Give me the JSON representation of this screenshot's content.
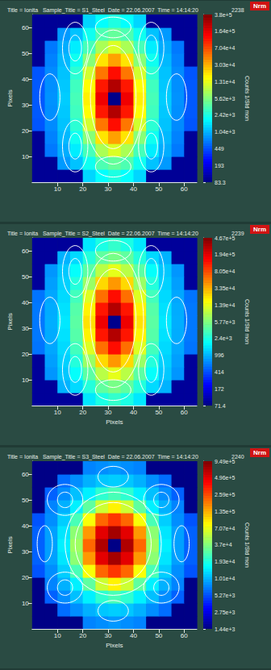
{
  "chart_data": [
    {
      "type": "heatmap",
      "title": "Title = Ionita   Sample_Title = S1_Steel  Date = 22.06.2007  Time = 14:14:20",
      "run": "2238",
      "badge": "Nrm",
      "ylabel": "Pixels",
      "xlim": [
        0,
        65
      ],
      "ylim": [
        0,
        65
      ],
      "xticks": [
        10,
        20,
        30,
        40,
        50,
        60
      ],
      "yticks": [
        10,
        20,
        30,
        40,
        50,
        60
      ],
      "log": true,
      "x": [
        2.5,
        7.5,
        12.5,
        17.5,
        22.5,
        27.5,
        32.5,
        37.5,
        42.5,
        47.5,
        52.5,
        57.5,
        62.5
      ],
      "y": [
        2.5,
        7.5,
        12.5,
        17.5,
        22.5,
        27.5,
        32.5,
        37.5,
        42.5,
        47.5,
        52.5,
        57.5,
        62.5
      ],
      "cells": [
        [
          100,
          100,
          100,
          100,
          1400,
          2000,
          2500,
          2000,
          1400,
          100,
          100,
          100,
          100
        ],
        [
          100,
          100,
          850,
          1200,
          2200,
          3700,
          4500,
          3700,
          2200,
          1200,
          850,
          100,
          100
        ],
        [
          100,
          650,
          1000,
          1700,
          3500,
          8000,
          12000,
          8000,
          3500,
          1700,
          1000,
          650,
          100
        ],
        [
          100,
          700,
          1100,
          2200,
          6000,
          20000,
          35000,
          20000,
          6000,
          2200,
          1100,
          700,
          100
        ],
        [
          480,
          750,
          1200,
          2800,
          11000,
          50000,
          120000,
          50000,
          11000,
          2800,
          1200,
          750,
          480
        ],
        [
          500,
          780,
          1250,
          3300,
          16000,
          110000,
          250000,
          110000,
          16000,
          3300,
          1250,
          780,
          500
        ],
        [
          500,
          800,
          1300,
          3500,
          18000,
          150000,
          90,
          150000,
          18000,
          3500,
          1300,
          800,
          500
        ],
        [
          500,
          780,
          1250,
          3300,
          16000,
          110000,
          250000,
          110000,
          16000,
          3300,
          1250,
          780,
          500
        ],
        [
          480,
          750,
          1200,
          2800,
          11000,
          50000,
          120000,
          50000,
          11000,
          2800,
          1200,
          750,
          480
        ],
        [
          100,
          700,
          1100,
          2200,
          6000,
          20000,
          35000,
          20000,
          6000,
          2200,
          1100,
          700,
          100
        ],
        [
          100,
          650,
          1000,
          1700,
          3500,
          8000,
          12000,
          8000,
          3500,
          1700,
          1000,
          650,
          100
        ],
        [
          100,
          100,
          850,
          1200,
          2200,
          3700,
          4500,
          3700,
          2200,
          1200,
          850,
          100,
          100
        ],
        [
          100,
          100,
          100,
          100,
          1400,
          2000,
          2500,
          2000,
          1400,
          100,
          100,
          100,
          100
        ]
      ],
      "colorbar_label": "Counts 1/Std mon",
      "colorbar_lim": [
        83.3,
        380000
      ],
      "colorbar_ticks": [
        83.3,
        193,
        449,
        {
          "value": 1040,
          "label": "1.04e+3"
        },
        {
          "value": 2420,
          "label": "2.42e+3"
        },
        {
          "value": 5620,
          "label": "5.62e+3"
        },
        {
          "value": 13100,
          "label": "1.31e+4"
        },
        {
          "value": 30300,
          "label": "3.03e+4"
        },
        {
          "value": 70400,
          "label": "7.04e+4"
        },
        {
          "value": 164000,
          "label": "1.64e+5"
        },
        {
          "value": 380000,
          "label": "3.8e+5"
        }
      ],
      "contours": [
        {
          "x": 32,
          "y": 33,
          "rx": 9,
          "ry": 20
        },
        {
          "x": 32,
          "y": 33,
          "rx": 12,
          "ry": 26
        },
        {
          "x": 17,
          "y": 52,
          "rx": 5,
          "ry": 10
        },
        {
          "x": 17,
          "y": 52,
          "rx": 2.5,
          "ry": 5
        },
        {
          "x": 47,
          "y": 52,
          "rx": 5,
          "ry": 10
        },
        {
          "x": 47,
          "y": 52,
          "rx": 2.5,
          "ry": 5
        },
        {
          "x": 17,
          "y": 14,
          "rx": 5,
          "ry": 10
        },
        {
          "x": 17,
          "y": 14,
          "rx": 2.5,
          "ry": 5
        },
        {
          "x": 47,
          "y": 14,
          "rx": 5,
          "ry": 10
        },
        {
          "x": 47,
          "y": 14,
          "rx": 2.5,
          "ry": 5
        },
        {
          "x": 7,
          "y": 33,
          "rx": 4,
          "ry": 9
        },
        {
          "x": 57,
          "y": 33,
          "rx": 4,
          "ry": 9
        },
        {
          "x": 32,
          "y": 60,
          "rx": 7,
          "ry": 4
        },
        {
          "x": 32,
          "y": 6,
          "rx": 7,
          "ry": 4
        }
      ]
    },
    {
      "type": "heatmap",
      "title": "Title = Ionita   Sample_Title = S2_Steel  Date = 22.06.2007  Time = 14:14:20",
      "run": "2239",
      "badge": "Nrm",
      "xlabel": "Pixels",
      "ylabel": "Pixels",
      "xlim": [
        0,
        65
      ],
      "ylim": [
        0,
        65
      ],
      "xticks": [
        10,
        20,
        30,
        40,
        50,
        60
      ],
      "yticks": [
        10,
        20,
        30,
        40,
        50,
        60
      ],
      "log": true,
      "x": [
        2.5,
        7.5,
        12.5,
        17.5,
        22.5,
        27.5,
        32.5,
        37.5,
        42.5,
        47.5,
        52.5,
        57.5,
        62.5
      ],
      "y": [
        2.5,
        7.5,
        12.5,
        17.5,
        22.5,
        27.5,
        32.5,
        37.5,
        42.5,
        47.5,
        52.5,
        57.5,
        62.5
      ],
      "cells": [
        [
          90,
          90,
          90,
          90,
          1600,
          2400,
          3000,
          2400,
          1600,
          90,
          90,
          90,
          90
        ],
        [
          90,
          90,
          1000,
          1400,
          2600,
          4400,
          5400,
          4400,
          2600,
          1400,
          1000,
          90,
          90
        ],
        [
          90,
          780,
          1200,
          2000,
          4200,
          9500,
          14000,
          9500,
          4200,
          2000,
          1200,
          780,
          90
        ],
        [
          90,
          840,
          1300,
          2600,
          7200,
          24000,
          42000,
          24000,
          7200,
          2600,
          1300,
          840,
          90
        ],
        [
          580,
          900,
          1400,
          3400,
          13000,
          60000,
          140000,
          60000,
          13000,
          3400,
          1400,
          900,
          580
        ],
        [
          600,
          940,
          1500,
          4000,
          19000,
          130000,
          300000,
          130000,
          19000,
          4000,
          1500,
          940,
          600
        ],
        [
          600,
          960,
          1600,
          4200,
          22000,
          180000,
          80,
          180000,
          22000,
          4200,
          1600,
          960,
          600
        ],
        [
          600,
          940,
          1500,
          4000,
          19000,
          130000,
          300000,
          130000,
          19000,
          4000,
          1500,
          940,
          600
        ],
        [
          580,
          900,
          1400,
          3400,
          13000,
          60000,
          140000,
          60000,
          13000,
          3400,
          1400,
          900,
          580
        ],
        [
          90,
          840,
          1300,
          2600,
          7200,
          24000,
          42000,
          24000,
          7200,
          2600,
          1300,
          840,
          90
        ],
        [
          90,
          780,
          1200,
          2000,
          4200,
          9500,
          14000,
          9500,
          4200,
          2000,
          1200,
          780,
          90
        ],
        [
          90,
          90,
          1000,
          1400,
          2600,
          4400,
          5400,
          4400,
          2600,
          1400,
          1000,
          90,
          90
        ],
        [
          90,
          90,
          90,
          90,
          1600,
          2400,
          3000,
          2400,
          1600,
          90,
          90,
          90,
          90
        ]
      ],
      "colorbar_label": "Counts 1/Std mon",
      "colorbar_lim": [
        71.4,
        467000
      ],
      "colorbar_ticks": [
        71.4,
        172,
        414,
        996,
        {
          "value": 2400,
          "label": "2.4e+3"
        },
        {
          "value": 5770,
          "label": "5.77e+3"
        },
        {
          "value": 13900,
          "label": "1.39e+4"
        },
        {
          "value": 33500,
          "label": "3.35e+4"
        },
        {
          "value": 80500,
          "label": "8.05e+4"
        },
        {
          "value": 194000,
          "label": "1.94e+5"
        },
        {
          "value": 467000,
          "label": "4.67e+5"
        }
      ],
      "contours": [
        {
          "x": 32,
          "y": 33,
          "rx": 9,
          "ry": 20
        },
        {
          "x": 32,
          "y": 33,
          "rx": 12,
          "ry": 26
        },
        {
          "x": 17,
          "y": 52,
          "rx": 5,
          "ry": 10
        },
        {
          "x": 17,
          "y": 52,
          "rx": 2.5,
          "ry": 5
        },
        {
          "x": 47,
          "y": 52,
          "rx": 5,
          "ry": 10
        },
        {
          "x": 47,
          "y": 52,
          "rx": 2.5,
          "ry": 5
        },
        {
          "x": 17,
          "y": 14,
          "rx": 5,
          "ry": 10
        },
        {
          "x": 17,
          "y": 14,
          "rx": 2.5,
          "ry": 5
        },
        {
          "x": 47,
          "y": 14,
          "rx": 5,
          "ry": 10
        },
        {
          "x": 47,
          "y": 14,
          "rx": 2.5,
          "ry": 5
        },
        {
          "x": 7,
          "y": 33,
          "rx": 4,
          "ry": 9
        },
        {
          "x": 57,
          "y": 33,
          "rx": 4,
          "ry": 9
        },
        {
          "x": 32,
          "y": 60,
          "rx": 7,
          "ry": 4
        },
        {
          "x": 32,
          "y": 6,
          "rx": 7,
          "ry": 4
        }
      ]
    },
    {
      "type": "heatmap",
      "title": "Title = Ionita   Sample_Title = S3_Steel  Date = 22.06.2007  Time = 14:14:20",
      "run": "2240",
      "badge": "Nrm",
      "xlabel": "Pixels",
      "ylabel": "Pixels",
      "xlim": [
        0,
        65
      ],
      "ylim": [
        0,
        65
      ],
      "xticks": [
        10,
        20,
        30,
        40,
        50,
        60
      ],
      "yticks": [
        10,
        20,
        30,
        40,
        50,
        60
      ],
      "log": true,
      "x": [
        2.5,
        7.5,
        12.5,
        17.5,
        22.5,
        27.5,
        32.5,
        37.5,
        42.5,
        47.5,
        52.5,
        57.5,
        62.5
      ],
      "y": [
        2.5,
        7.5,
        12.5,
        17.5,
        22.5,
        27.5,
        32.5,
        37.5,
        42.5,
        47.5,
        52.5,
        57.5,
        62.5
      ],
      "cells": [
        [
          1500,
          1500,
          1500,
          1500,
          7500,
          8000,
          8500,
          8000,
          7500,
          1500,
          1500,
          1500,
          1500
        ],
        [
          1500,
          1500,
          6500,
          8000,
          10000,
          11500,
          12000,
          11500,
          10000,
          8000,
          6500,
          1500,
          1500
        ],
        [
          1500,
          6000,
          8000,
          11000,
          15000,
          22000,
          26000,
          22000,
          15000,
          11000,
          8000,
          6000,
          1500
        ],
        [
          1500,
          7500,
          10000,
          15000,
          30000,
          60000,
          90000,
          60000,
          30000,
          15000,
          10000,
          7500,
          1500
        ],
        [
          5500,
          8000,
          12000,
          26000,
          80000,
          220000,
          300000,
          220000,
          80000,
          26000,
          12000,
          8000,
          5500
        ],
        [
          6000,
          9000,
          14000,
          40000,
          160000,
          500000,
          750000,
          500000,
          160000,
          40000,
          14000,
          9000,
          6000
        ],
        [
          6000,
          9000,
          15000,
          45000,
          220000,
          700000,
          1500,
          700000,
          220000,
          45000,
          15000,
          9000,
          6000
        ],
        [
          6000,
          9000,
          14000,
          40000,
          160000,
          500000,
          750000,
          500000,
          160000,
          40000,
          14000,
          9000,
          6000
        ],
        [
          5500,
          8000,
          12000,
          26000,
          80000,
          220000,
          300000,
          220000,
          80000,
          26000,
          12000,
          8000,
          5500
        ],
        [
          1500,
          7500,
          10000,
          15000,
          30000,
          60000,
          90000,
          60000,
          30000,
          15000,
          10000,
          7500,
          1500
        ],
        [
          1500,
          6000,
          8000,
          11000,
          15000,
          22000,
          26000,
          22000,
          15000,
          11000,
          8000,
          6000,
          1500
        ],
        [
          1500,
          1500,
          6500,
          8000,
          10000,
          11500,
          12000,
          11500,
          10000,
          8000,
          6500,
          1500,
          1500
        ],
        [
          1500,
          1500,
          1500,
          1500,
          7500,
          8000,
          8500,
          8000,
          7500,
          1500,
          1500,
          1500,
          1500
        ]
      ],
      "colorbar_label": "Counts 1/Std mon",
      "colorbar_lim": [
        1440,
        949000
      ],
      "colorbar_ticks": [
        {
          "value": 1440,
          "label": "1.44e+3"
        },
        {
          "value": 2750,
          "label": "2.75e+3"
        },
        {
          "value": 5270,
          "label": "5.27e+3"
        },
        {
          "value": 10100,
          "label": "1.01e+4"
        },
        {
          "value": 19300,
          "label": "1.93e+4"
        },
        {
          "value": 37000,
          "label": "3.7e+4"
        },
        {
          "value": 70700,
          "label": "7.07e+4"
        },
        {
          "value": 135000,
          "label": "1.35e+5"
        },
        {
          "value": 259000,
          "label": "2.59e+5"
        },
        {
          "value": 496000,
          "label": "4.96e+5"
        },
        {
          "value": 949000,
          "label": "9.49e+5"
        }
      ],
      "contours": [
        {
          "x": 32,
          "y": 33,
          "rx": 15,
          "ry": 16
        },
        {
          "x": 32,
          "y": 33,
          "rx": 19,
          "ry": 20
        },
        {
          "x": 13,
          "y": 50,
          "rx": 7,
          "ry": 6
        },
        {
          "x": 13,
          "y": 50,
          "rx": 3,
          "ry": 3
        },
        {
          "x": 51,
          "y": 50,
          "rx": 7,
          "ry": 6
        },
        {
          "x": 51,
          "y": 50,
          "rx": 3,
          "ry": 3
        },
        {
          "x": 13,
          "y": 16,
          "rx": 7,
          "ry": 6
        },
        {
          "x": 13,
          "y": 16,
          "rx": 3,
          "ry": 3
        },
        {
          "x": 51,
          "y": 16,
          "rx": 7,
          "ry": 6
        },
        {
          "x": 51,
          "y": 16,
          "rx": 3,
          "ry": 3
        },
        {
          "x": 32,
          "y": 59,
          "rx": 6,
          "ry": 4
        },
        {
          "x": 32,
          "y": 7,
          "rx": 6,
          "ry": 4
        },
        {
          "x": 5,
          "y": 33,
          "rx": 3,
          "ry": 7
        },
        {
          "x": 59,
          "y": 33,
          "rx": 3,
          "ry": 7
        }
      ]
    }
  ]
}
